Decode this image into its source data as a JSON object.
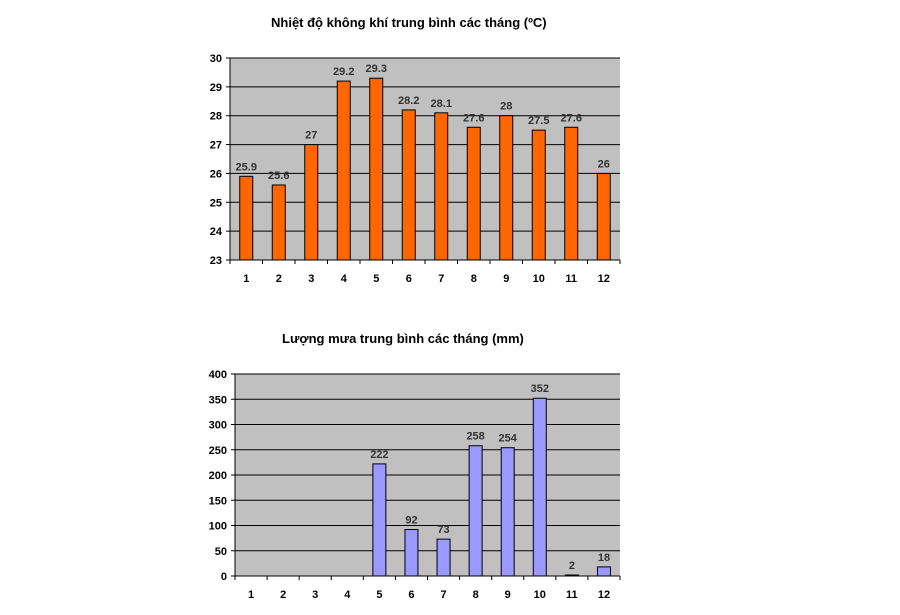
{
  "chart_data": [
    {
      "type": "bar",
      "title": "Nhiệt độ không khí trung bình các tháng (ºC)",
      "categories": [
        "1",
        "2",
        "3",
        "4",
        "5",
        "6",
        "7",
        "8",
        "9",
        "10",
        "11",
        "12"
      ],
      "values": [
        25.9,
        25.6,
        27,
        29.2,
        29.3,
        28.2,
        28.1,
        27.6,
        28,
        27.5,
        27.6,
        26
      ],
      "data_labels": [
        "25.9",
        "25.6",
        "27",
        "29.2",
        "29.3",
        "28.2",
        "28.1",
        "27.6",
        "28",
        "27.5",
        "27.6",
        "26"
      ],
      "ylim": [
        23,
        30
      ],
      "yticks": [
        23,
        24,
        25,
        26,
        27,
        28,
        29,
        30
      ],
      "grid": true,
      "legend": "none",
      "bar_color": "#ff6600",
      "plot_background": "#c0c0c0"
    },
    {
      "type": "bar",
      "title": "Lượng mưa trung bình các tháng (mm)",
      "categories": [
        "1",
        "2",
        "3",
        "4",
        "5",
        "6",
        "7",
        "8",
        "9",
        "10",
        "11",
        "12"
      ],
      "values": [
        0,
        0,
        0,
        0,
        222,
        92,
        73,
        258,
        254,
        352,
        2,
        18
      ],
      "data_labels": [
        "",
        "",
        "",
        "",
        "222",
        "92",
        "73",
        "258",
        "254",
        "352",
        "2",
        "18"
      ],
      "ylim": [
        0,
        400
      ],
      "yticks": [
        0,
        50,
        100,
        150,
        200,
        250,
        300,
        350,
        400
      ],
      "grid": true,
      "legend": "none",
      "bar_color": "#9999ff",
      "plot_background": "#c0c0c0"
    }
  ]
}
